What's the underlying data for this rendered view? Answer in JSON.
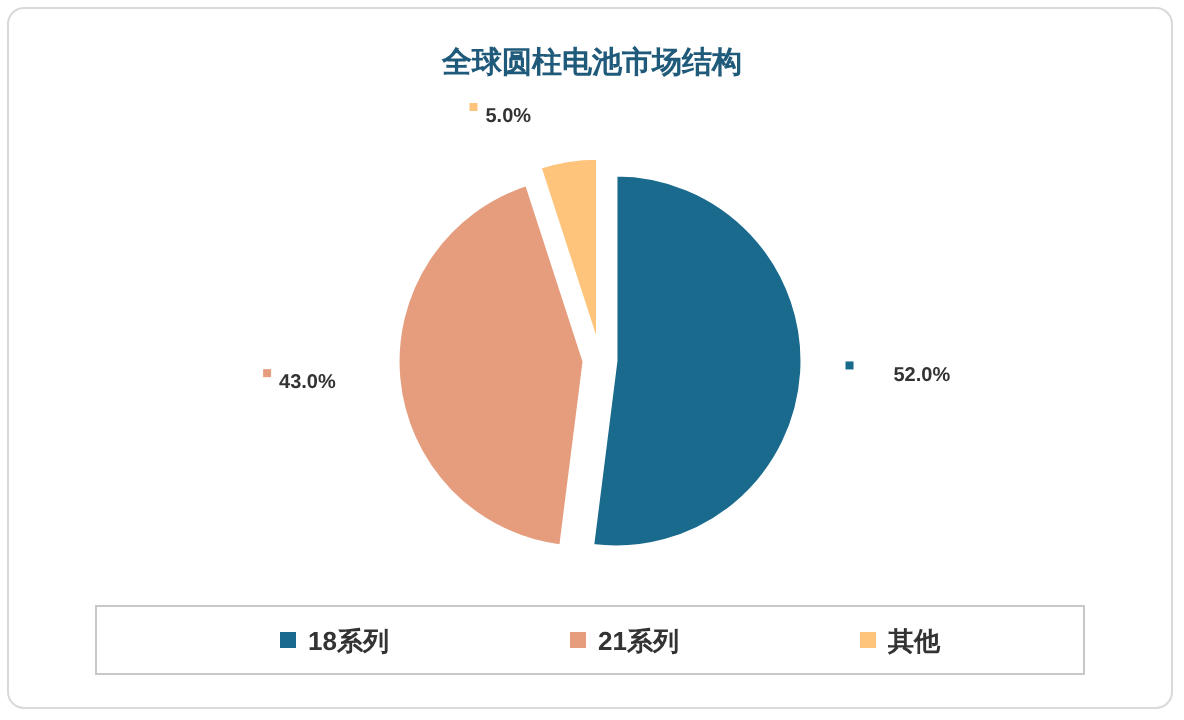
{
  "chart_data": {
    "type": "pie",
    "title": "全球圆柱电池市场结构",
    "categories": [
      "18系列",
      "21系列",
      "其他"
    ],
    "values": [
      52,
      43,
      5
    ],
    "colors": [
      "#1a6a8e",
      "#e59d7e",
      "#ffc47c"
    ],
    "value_labels": [
      "52.0%",
      "43.0%",
      "5.0%"
    ],
    "legend": "bottom"
  }
}
